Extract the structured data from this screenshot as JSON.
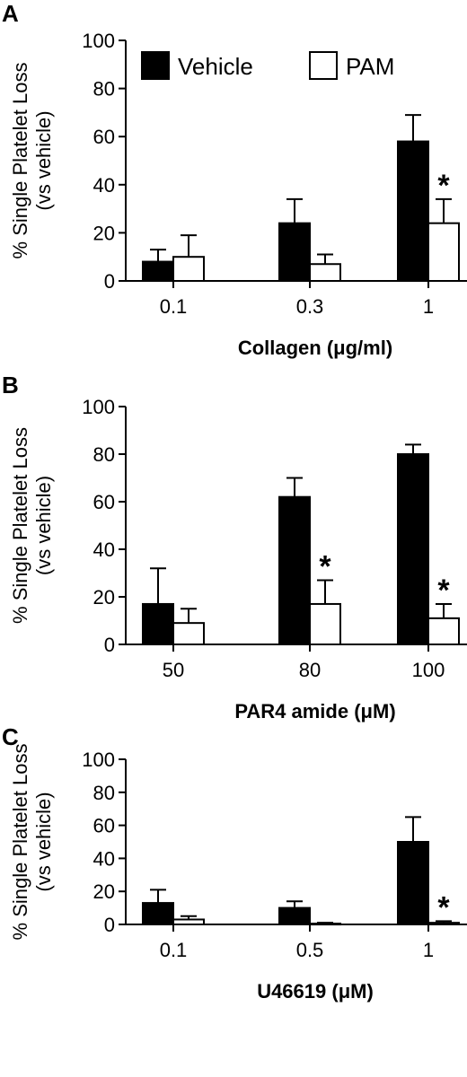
{
  "legend": [
    {
      "name": "Vehicle",
      "color": "#000000"
    },
    {
      "name": "PAM",
      "color": "#ffffff"
    }
  ],
  "ylabel_line1": "% Single Platelet Loss",
  "ylabel_line2": "(vs vehicle)",
  "chart_data": [
    {
      "type": "bar",
      "panel": "A",
      "categories": [
        "0.1",
        "0.3",
        "1"
      ],
      "xlabel": "Collagen (μg/ml)",
      "ylim": [
        0,
        100
      ],
      "yticks": [
        "0",
        "20",
        "40",
        "60",
        "80",
        "100"
      ],
      "series": [
        {
          "name": "Vehicle",
          "values": [
            8,
            24,
            58
          ],
          "errors": [
            5,
            10,
            11
          ],
          "significant": [
            false,
            false,
            false
          ]
        },
        {
          "name": "PAM",
          "values": [
            10,
            7,
            24
          ],
          "errors": [
            9,
            4,
            10
          ],
          "significant": [
            false,
            false,
            true
          ]
        }
      ],
      "significance_marker": "*",
      "legend": "top-left"
    },
    {
      "type": "bar",
      "panel": "B",
      "categories": [
        "50",
        "80",
        "100"
      ],
      "xlabel": "PAR4 amide (μM)",
      "ylim": [
        0,
        100
      ],
      "yticks": [
        "0",
        "20",
        "40",
        "60",
        "80",
        "100"
      ],
      "series": [
        {
          "name": "Vehicle",
          "values": [
            17,
            62,
            80
          ],
          "errors": [
            15,
            8,
            4
          ],
          "significant": [
            false,
            false,
            false
          ]
        },
        {
          "name": "PAM",
          "values": [
            9,
            17,
            11
          ],
          "errors": [
            6,
            10,
            6
          ],
          "significant": [
            false,
            true,
            true
          ]
        }
      ],
      "significance_marker": "*"
    },
    {
      "type": "bar",
      "panel": "C",
      "categories": [
        "0.1",
        "0.5",
        "1"
      ],
      "xlabel": "U46619 (μM)",
      "ylim": [
        0,
        100
      ],
      "yticks": [
        "0",
        "20",
        "40",
        "60",
        "80",
        "100"
      ],
      "series": [
        {
          "name": "Vehicle",
          "values": [
            13,
            10,
            50
          ],
          "errors": [
            8,
            4,
            15
          ],
          "significant": [
            false,
            false,
            false
          ]
        },
        {
          "name": "PAM",
          "values": [
            3,
            0.5,
            1
          ],
          "errors": [
            2,
            0.5,
            1
          ],
          "significant": [
            false,
            false,
            true
          ]
        }
      ],
      "significance_marker": "*"
    }
  ]
}
